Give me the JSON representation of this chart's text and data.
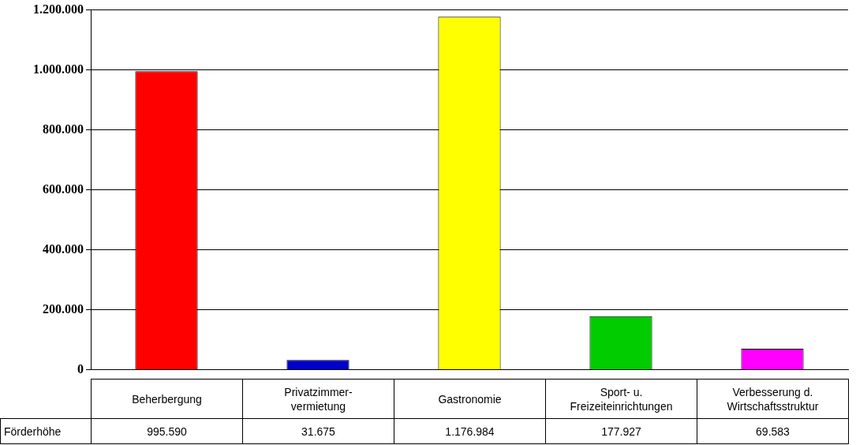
{
  "chart_data": {
    "type": "bar",
    "categories": [
      "Beherbergung",
      "Privatzimmer-vermietung",
      "Gastronomie",
      "Sport- u. Freizeiteinrichtungen",
      "Verbesserung d. Wirtschaftsstruktur"
    ],
    "series": [
      {
        "name": "Förderhöhe",
        "colors": [
          "#ff0000",
          "#0000cc",
          "#ffff00",
          "#00cc00",
          "#ff00ff"
        ],
        "values": [
          995590,
          31675,
          1176984,
          177927,
          69583
        ],
        "value_labels": [
          "995.590",
          "31.675",
          "1.176.984",
          "177.927",
          "69.583"
        ]
      }
    ],
    "ylim": [
      0,
      1200000
    ],
    "yticks": [
      {
        "value": 0,
        "label": "0"
      },
      {
        "value": 200000,
        "label": "200.000"
      },
      {
        "value": 400000,
        "label": "400.000"
      },
      {
        "value": 600000,
        "label": "600.000"
      },
      {
        "value": 800000,
        "label": "800.000"
      },
      {
        "value": 1000000,
        "label": "1.000.000"
      },
      {
        "value": 1200000,
        "label": "1.200.000"
      }
    ],
    "grid": "y",
    "legend": false
  }
}
